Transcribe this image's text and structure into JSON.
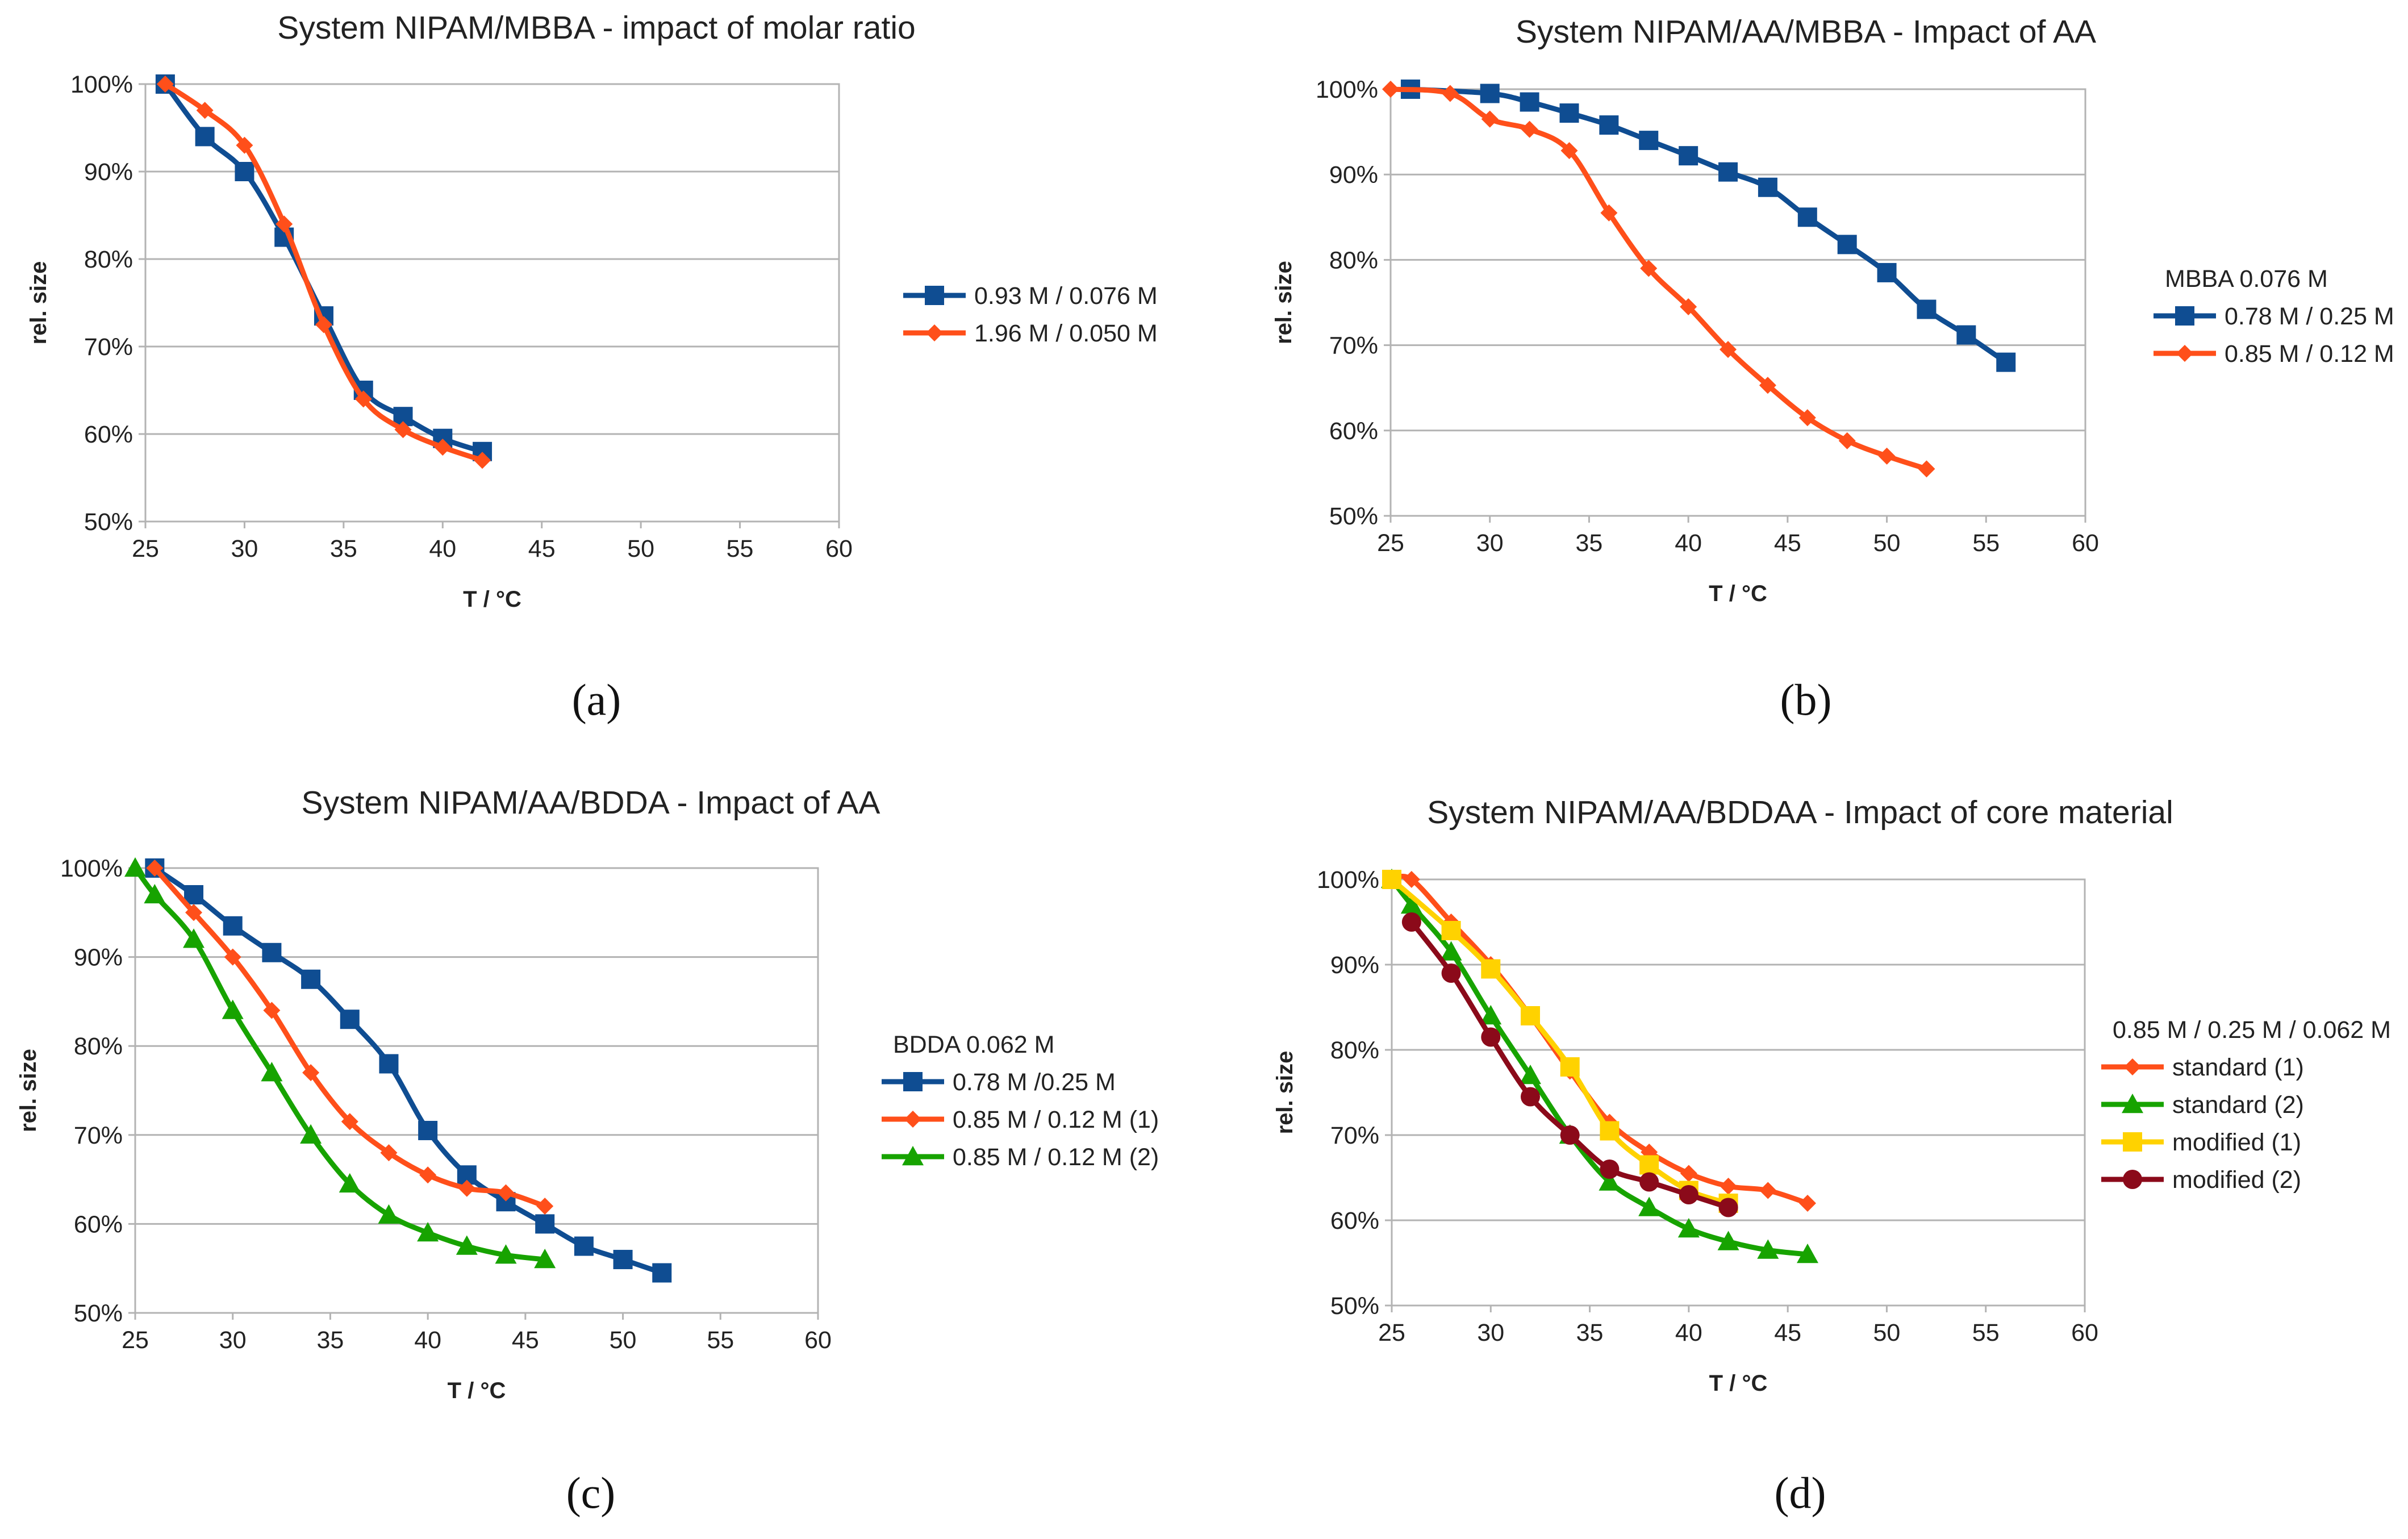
{
  "chart_data": [
    {
      "type": "line",
      "title": "System NIPAM/MBBA - impact of molar ratio",
      "xlabel": "T / °C",
      "ylabel": "rel. size",
      "xlim": [
        25,
        60
      ],
      "ylim": [
        50,
        100
      ],
      "xticks": [
        "25",
        "30",
        "35",
        "40",
        "45",
        "50",
        "55",
        "60"
      ],
      "yticks": [
        "50%",
        "60%",
        "70%",
        "80%",
        "90%",
        "100%"
      ],
      "grid": "horizontal",
      "legend_title": "",
      "caption": "(a)",
      "series": [
        {
          "name": "0.93 M / 0.076 M",
          "color": "#0f4d92",
          "marker": "square",
          "x": [
            26,
            28,
            30,
            32,
            34,
            36,
            38,
            40,
            42
          ],
          "y": [
            100,
            94,
            90,
            82.5,
            73.5,
            65,
            62,
            59.5,
            58
          ]
        },
        {
          "name": "1.96 M / 0.050 M",
          "color": "#ff4f1a",
          "marker": "diamond",
          "x": [
            26,
            28,
            30,
            32,
            34,
            36,
            38,
            40,
            42
          ],
          "y": [
            100,
            97,
            93,
            84,
            72.5,
            64,
            60.5,
            58.5,
            57
          ]
        }
      ]
    },
    {
      "type": "line",
      "title": "System NIPAM/AA/MBBA - Impact of AA",
      "xlabel": "T / °C",
      "ylabel": "rel. size",
      "xlim": [
        25,
        60
      ],
      "ylim": [
        50,
        100
      ],
      "xticks": [
        "25",
        "30",
        "35",
        "40",
        "45",
        "50",
        "55",
        "60"
      ],
      "yticks": [
        "50%",
        "60%",
        "70%",
        "80%",
        "90%",
        "100%"
      ],
      "grid": "horizontal",
      "legend_title": "MBBA 0.076 M",
      "caption": "(b)",
      "series": [
        {
          "name": "0.78 M / 0.25 M",
          "color": "#0f4d92",
          "marker": "square",
          "x": [
            26,
            30,
            32,
            34,
            36,
            38,
            40,
            42,
            44,
            46,
            48,
            50,
            52,
            54,
            56
          ],
          "y": [
            100,
            99.5,
            98.5,
            97.2,
            95.8,
            94,
            92.2,
            90.3,
            88.5,
            85,
            81.8,
            78.5,
            74.2,
            71.2,
            68
          ]
        },
        {
          "name": "0.85 M / 0.12 M",
          "color": "#ff4f1a",
          "marker": "diamond",
          "x": [
            25,
            28,
            30,
            32,
            34,
            36,
            38,
            40,
            42,
            44,
            46,
            48,
            50,
            52
          ],
          "y": [
            100,
            99.5,
            96.5,
            95.3,
            92.8,
            85.5,
            79,
            74.5,
            69.5,
            65.3,
            61.5,
            58.8,
            57,
            55.5
          ]
        }
      ]
    },
    {
      "type": "line",
      "title": "System NIPAM/AA/BDDA - Impact of AA",
      "xlabel": "T / °C",
      "ylabel": "rel. size",
      "xlim": [
        25,
        60
      ],
      "ylim": [
        50,
        100
      ],
      "xticks": [
        "25",
        "30",
        "35",
        "40",
        "45",
        "50",
        "55",
        "60"
      ],
      "yticks": [
        "50%",
        "60%",
        "70%",
        "80%",
        "90%",
        "100%"
      ],
      "grid": "horizontal",
      "legend_title": "BDDA 0.062 M",
      "caption": "(c)",
      "series": [
        {
          "name": "0.78 M /0.25 M",
          "color": "#0f4d92",
          "marker": "square",
          "x": [
            26,
            28,
            30,
            32,
            34,
            36,
            38,
            40,
            42,
            44,
            46,
            48,
            50,
            52
          ],
          "y": [
            100,
            97,
            93.5,
            90.5,
            87.5,
            83,
            78,
            70.5,
            65.5,
            62.5,
            60,
            57.5,
            56,
            54.5
          ]
        },
        {
          "name": "0.85 M / 0.12 M (1)",
          "color": "#ff4f1a",
          "marker": "diamond",
          "x": [
            26,
            28,
            30,
            32,
            34,
            36,
            38,
            40,
            42,
            44,
            46
          ],
          "y": [
            100,
            95,
            90,
            84,
            77,
            71.5,
            68,
            65.5,
            64,
            63.5,
            62
          ]
        },
        {
          "name": "0.85 M / 0.12 M (2)",
          "color": "#17a300",
          "marker": "triangle",
          "x": [
            25,
            26,
            28,
            30,
            32,
            34,
            36,
            38,
            40,
            42,
            44,
            46
          ],
          "y": [
            100,
            97,
            92,
            84,
            77,
            70,
            64.5,
            61,
            59,
            57.5,
            56.5,
            56
          ]
        }
      ]
    },
    {
      "type": "line",
      "title": "System NIPAM/AA/BDDAA - Impact of core material",
      "xlabel": "T / °C",
      "ylabel": "rel. size",
      "xlim": [
        25,
        60
      ],
      "ylim": [
        50,
        100
      ],
      "xticks": [
        "25",
        "30",
        "35",
        "40",
        "45",
        "50",
        "55",
        "60"
      ],
      "yticks": [
        "50%",
        "60%",
        "70%",
        "80%",
        "90%",
        "100%"
      ],
      "grid": "horizontal",
      "legend_title": "0.85 M / 0.25 M / 0.062 M",
      "caption": "(d)",
      "series": [
        {
          "name": "standard (1)",
          "color": "#ff4f1a",
          "marker": "diamond",
          "x": [
            25,
            26,
            28,
            30,
            32,
            34,
            36,
            38,
            40,
            42,
            44,
            46
          ],
          "y": [
            100,
            100,
            95,
            90,
            84,
            77.5,
            71.5,
            68,
            65.5,
            64,
            63.5,
            62
          ]
        },
        {
          "name": "standard (2)",
          "color": "#17a300",
          "marker": "triangle",
          "x": [
            25,
            26,
            28,
            30,
            32,
            34,
            36,
            38,
            40,
            42,
            44,
            46
          ],
          "y": [
            100,
            97,
            91.5,
            84,
            77,
            70,
            64.5,
            61.5,
            59,
            57.5,
            56.5,
            56
          ]
        },
        {
          "name": "modified (1)",
          "color": "#ffd200",
          "marker": "square",
          "x": [
            25,
            28,
            30,
            32,
            34,
            36,
            38,
            40,
            42
          ],
          "y": [
            100,
            94,
            89.5,
            84,
            78,
            70.5,
            66.5,
            63.5,
            62
          ]
        },
        {
          "name": "modified (2)",
          "color": "#8b0a1a",
          "marker": "circle",
          "x": [
            26,
            28,
            30,
            32,
            34,
            36,
            38,
            40,
            42
          ],
          "y": [
            95,
            89,
            81.5,
            74.5,
            70,
            66,
            64.5,
            63,
            61.5
          ]
        }
      ]
    }
  ]
}
